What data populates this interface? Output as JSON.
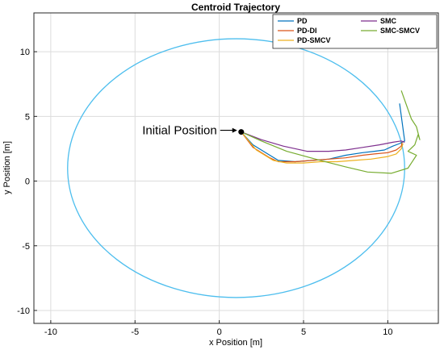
{
  "chart_data": {
    "type": "line",
    "title": "Centroid Trajectory",
    "xlabel": "x Position [m]",
    "ylabel": "y Position [m]",
    "xlim": [
      -11,
      13
    ],
    "ylim": [
      -11,
      13
    ],
    "xticks": [
      -10,
      -5,
      0,
      5,
      10
    ],
    "yticks": [
      -10,
      -5,
      0,
      5,
      10
    ],
    "grid": true,
    "legend_position": "top-right",
    "reference_circle": {
      "center": [
        1,
        1
      ],
      "radius": 10,
      "color": "#4DBEEE"
    },
    "annotation": {
      "text": "Initial Position",
      "point": [
        1.3,
        3.8
      ]
    },
    "series": [
      {
        "name": "PD",
        "color": "#0072BD",
        "x": [
          1.3,
          2.0,
          3.0,
          3.5,
          4.5,
          5.5,
          6.5,
          7.5,
          8.5,
          9.2,
          9.8,
          10.3,
          10.7,
          11.0,
          10.95,
          10.7
        ],
        "y": [
          3.8,
          2.8,
          2.0,
          1.6,
          1.5,
          1.6,
          1.7,
          2.0,
          2.2,
          2.3,
          2.4,
          2.7,
          2.9,
          3.1,
          3.6,
          6.0
        ]
      },
      {
        "name": "PD-DI",
        "color": "#D95319",
        "x": [
          1.3,
          2.0,
          3.0,
          3.5,
          4.5,
          5.5,
          6.5,
          7.5,
          8.5,
          9.2,
          10.0,
          10.5,
          10.8,
          10.85
        ],
        "y": [
          3.8,
          2.6,
          1.8,
          1.5,
          1.5,
          1.6,
          1.7,
          1.8,
          2.0,
          2.1,
          2.2,
          2.4,
          2.7,
          3.0
        ]
      },
      {
        "name": "PD-SMCV",
        "color": "#EDB120",
        "x": [
          1.3,
          2.2,
          3.2,
          4.0,
          5.0,
          6.0,
          7.0,
          8.0,
          9.0,
          10.0,
          10.5,
          10.8,
          10.9
        ],
        "y": [
          3.8,
          2.4,
          1.6,
          1.4,
          1.4,
          1.5,
          1.5,
          1.6,
          1.7,
          1.9,
          2.1,
          2.5,
          2.9
        ]
      },
      {
        "name": "SMC",
        "color": "#7E2F8E",
        "x": [
          1.3,
          2.5,
          3.8,
          5.2,
          6.5,
          7.5,
          8.5,
          9.5,
          10.3,
          10.8,
          11.0
        ],
        "y": [
          3.8,
          3.2,
          2.7,
          2.3,
          2.3,
          2.4,
          2.6,
          2.8,
          3.0,
          3.1,
          3.0
        ]
      },
      {
        "name": "SMC-SMCV",
        "color": "#77AC30",
        "x": [
          1.3,
          2.5,
          4.0,
          6.0,
          7.5,
          8.8,
          10.2,
          11.2,
          11.7,
          11.2,
          11.6,
          11.8,
          11.9,
          11.7,
          11.4,
          10.8
        ],
        "y": [
          3.8,
          3.1,
          2.3,
          1.6,
          1.1,
          0.7,
          0.6,
          1.0,
          2.0,
          2.3,
          2.8,
          3.6,
          3.2,
          4.2,
          4.8,
          7.0
        ]
      }
    ]
  }
}
